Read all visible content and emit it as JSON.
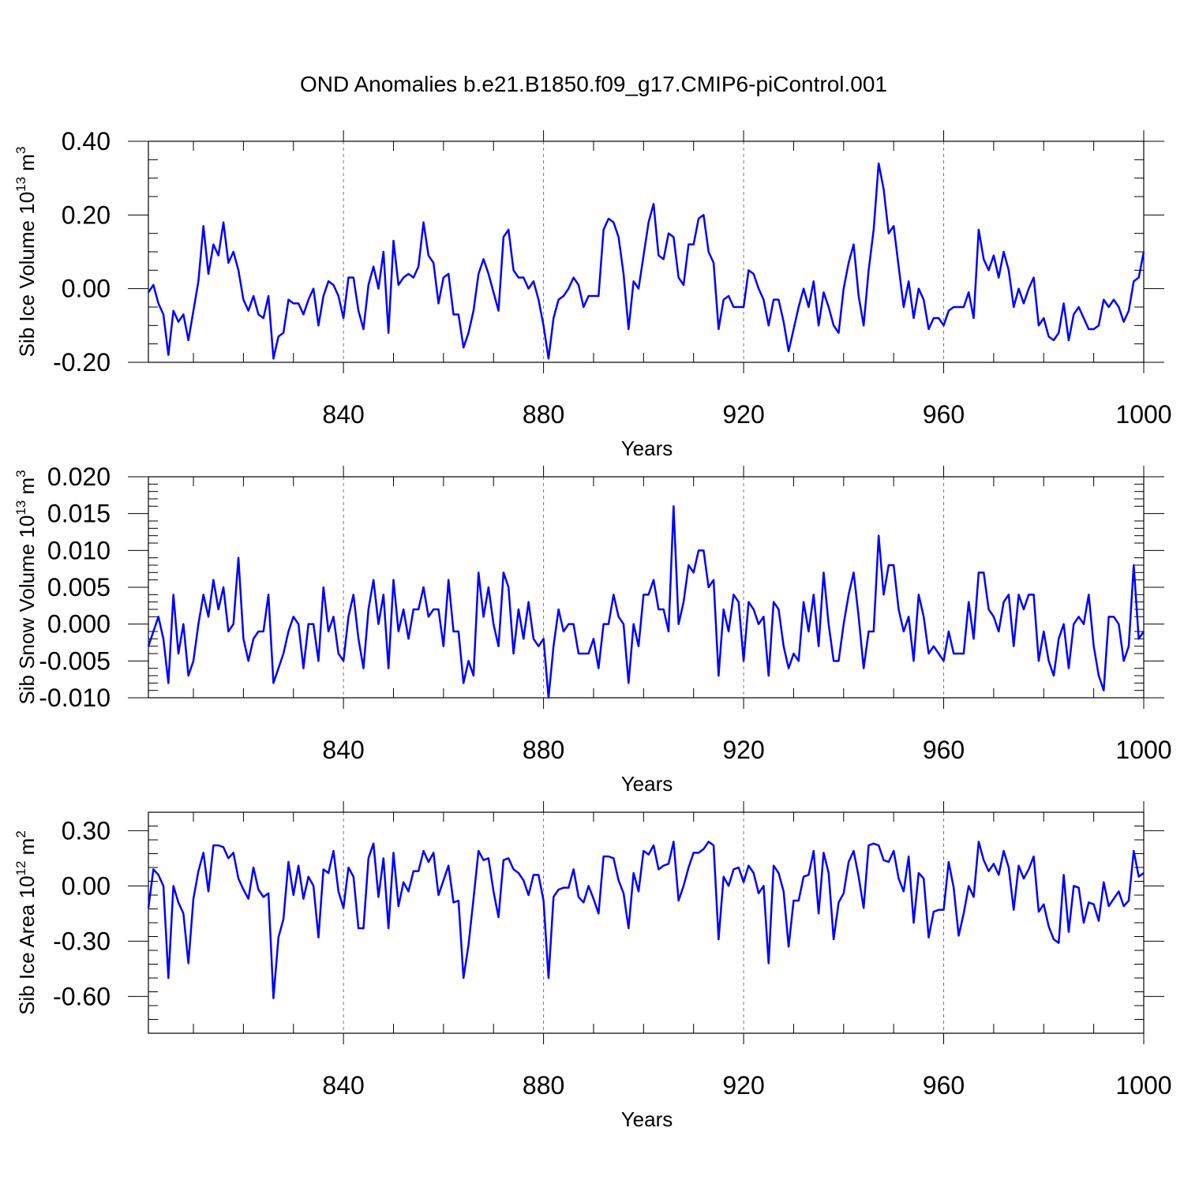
{
  "title": "OND Anomalies b.e21.B1850.f09_g17.CMIP6-piControl.001",
  "chart_data": [
    {
      "type": "line",
      "ylabel": {
        "text": "Sib Ice Volume 10",
        "exp": "13",
        "unit": " m",
        "unit_exp": "3"
      },
      "xlabel": "Years",
      "xlim": [
        801,
        1000
      ],
      "ylim": [
        -0.2,
        0.4
      ],
      "yticks": [
        "-0.20",
        "0.00",
        "0.20",
        "0.40"
      ],
      "ytick_values": [
        -0.2,
        0,
        0.2,
        0.4
      ],
      "y_minor_step": 0.05,
      "xticks": [
        "840",
        "880",
        "920",
        "960",
        "1000"
      ],
      "xtick_values": [
        840,
        880,
        920,
        960,
        1000
      ],
      "color": "#0000ff",
      "x_start": 801,
      "values": [
        -0.01,
        0.01,
        -0.04,
        -0.07,
        -0.18,
        -0.06,
        -0.09,
        -0.07,
        -0.14,
        -0.06,
        0.02,
        0.17,
        0.04,
        0.12,
        0.09,
        0.18,
        0.07,
        0.1,
        0.05,
        -0.03,
        -0.06,
        -0.02,
        -0.07,
        -0.08,
        -0.02,
        -0.19,
        -0.13,
        -0.12,
        -0.03,
        -0.04,
        -0.04,
        -0.07,
        -0.03,
        0.0,
        -0.1,
        -0.02,
        0.02,
        0.01,
        -0.02,
        -0.08,
        0.03,
        0.03,
        -0.06,
        -0.11,
        0.01,
        0.06,
        0.0,
        0.1,
        -0.12,
        0.13,
        0.01,
        0.03,
        0.04,
        0.03,
        0.06,
        0.18,
        0.09,
        0.07,
        -0.04,
        0.03,
        0.04,
        -0.07,
        -0.07,
        -0.16,
        -0.12,
        -0.06,
        0.04,
        0.08,
        0.04,
        -0.01,
        -0.06,
        0.14,
        0.16,
        0.05,
        0.03,
        0.03,
        0.0,
        0.02,
        -0.03,
        -0.1,
        -0.19,
        -0.08,
        -0.03,
        -0.02,
        0.0,
        0.03,
        0.01,
        -0.05,
        -0.02,
        -0.02,
        -0.02,
        0.16,
        0.19,
        0.18,
        0.14,
        0.04,
        -0.11,
        0.02,
        0.0,
        0.09,
        0.18,
        0.23,
        0.09,
        0.08,
        0.15,
        0.14,
        0.03,
        0.01,
        0.12,
        0.12,
        0.19,
        0.2,
        0.1,
        0.07,
        -0.11,
        -0.03,
        -0.02,
        -0.05,
        -0.05,
        -0.05,
        0.05,
        0.04,
        0.0,
        -0.03,
        -0.1,
        -0.03,
        -0.03,
        -0.09,
        -0.17,
        -0.11,
        -0.05,
        0.0,
        -0.05,
        0.02,
        -0.1,
        -0.01,
        -0.05,
        -0.1,
        -0.12,
        0.0,
        0.07,
        0.12,
        -0.02,
        -0.1,
        0.05,
        0.16,
        0.34,
        0.27,
        0.15,
        0.17,
        0.06,
        -0.05,
        0.02,
        -0.08,
        0.0,
        -0.03,
        -0.11,
        -0.08,
        -0.08,
        -0.1,
        -0.06,
        -0.05,
        -0.05,
        -0.05,
        -0.01,
        -0.08,
        0.16,
        0.08,
        0.05,
        0.09,
        0.03,
        0.1,
        0.05,
        -0.05,
        0.0,
        -0.04,
        0.0,
        0.03,
        -0.1,
        -0.08,
        -0.13,
        -0.14,
        -0.12,
        -0.04,
        -0.14,
        -0.07,
        -0.05,
        -0.08,
        -0.11,
        -0.11,
        -0.1,
        -0.03,
        -0.05,
        -0.03,
        -0.05,
        -0.09,
        -0.06,
        0.02,
        0.03,
        0.1
      ]
    },
    {
      "type": "line",
      "ylabel": {
        "text": "Sib Snow Volume 10",
        "exp": "13",
        "unit": " m",
        "unit_exp": "3"
      },
      "xlabel": "Years",
      "xlim": [
        801,
        1000
      ],
      "ylim": [
        -0.01,
        0.02
      ],
      "yticks": [
        "-0.010",
        "-0.005",
        "0.000",
        "0.005",
        "0.010",
        "0.015",
        "0.020"
      ],
      "ytick_values": [
        -0.01,
        -0.005,
        0,
        0.005,
        0.01,
        0.015,
        0.02
      ],
      "y_minor_step": 0.001,
      "xticks": [
        "840",
        "880",
        "920",
        "960",
        "1000"
      ],
      "xtick_values": [
        840,
        880,
        920,
        960,
        1000
      ],
      "color": "#0000ff",
      "x_start": 801,
      "values": [
        -0.003,
        -0.001,
        0.001,
        -0.002,
        -0.008,
        0.004,
        -0.004,
        0.0,
        -0.007,
        -0.005,
        0.0,
        0.004,
        0.001,
        0.006,
        0.002,
        0.005,
        -0.001,
        0.0,
        0.009,
        -0.002,
        -0.005,
        -0.002,
        -0.001,
        -0.001,
        0.004,
        -0.008,
        -0.006,
        -0.004,
        -0.001,
        0.001,
        0.0,
        -0.006,
        0.0,
        0.0,
        -0.005,
        0.005,
        -0.001,
        0.001,
        -0.004,
        -0.005,
        0.001,
        0.004,
        -0.002,
        -0.006,
        0.002,
        0.006,
        0.0,
        0.004,
        -0.006,
        0.006,
        -0.001,
        0.002,
        -0.002,
        0.002,
        0.002,
        0.005,
        0.001,
        0.002,
        0.002,
        -0.003,
        0.006,
        -0.001,
        -0.001,
        -0.008,
        -0.005,
        -0.007,
        0.007,
        0.001,
        0.005,
        0.0,
        -0.003,
        0.007,
        0.005,
        -0.004,
        0.002,
        -0.002,
        0.003,
        -0.002,
        -0.003,
        -0.002,
        -0.01,
        -0.003,
        0.002,
        -0.001,
        0.0,
        0.0,
        -0.004,
        -0.004,
        -0.004,
        -0.002,
        -0.006,
        0.0,
        0.0,
        0.004,
        0.001,
        0.0,
        -0.008,
        0.0,
        -0.003,
        0.004,
        0.004,
        0.006,
        0.002,
        0.002,
        -0.001,
        0.016,
        0.0,
        0.003,
        0.008,
        0.007,
        0.01,
        0.01,
        0.005,
        0.006,
        -0.007,
        0.002,
        -0.001,
        0.004,
        0.003,
        -0.005,
        0.003,
        0.002,
        0.0,
        0.001,
        -0.007,
        0.003,
        0.002,
        -0.003,
        -0.006,
        -0.004,
        -0.005,
        0.003,
        -0.001,
        0.004,
        -0.003,
        0.007,
        0.0,
        -0.005,
        -0.005,
        0.0,
        0.004,
        0.007,
        0.001,
        -0.006,
        -0.001,
        -0.001,
        0.012,
        0.004,
        0.008,
        0.008,
        0.002,
        -0.001,
        0.001,
        -0.005,
        0.004,
        0.001,
        -0.004,
        -0.003,
        -0.004,
        -0.005,
        -0.001,
        -0.004,
        -0.004,
        -0.004,
        0.003,
        -0.002,
        0.007,
        0.007,
        0.002,
        0.001,
        -0.001,
        0.003,
        0.004,
        -0.003,
        0.004,
        0.002,
        0.004,
        0.004,
        -0.005,
        -0.001,
        -0.005,
        -0.007,
        -0.002,
        0.0,
        -0.006,
        0.0,
        0.001,
        0.0,
        0.004,
        -0.003,
        -0.007,
        -0.009,
        0.001,
        0.001,
        0.0,
        -0.005,
        -0.003,
        0.008,
        -0.002,
        -0.001
      ]
    },
    {
      "type": "line",
      "ylabel": {
        "text": "Sib Ice Area 10",
        "exp": "12",
        "unit": " m",
        "unit_exp": "2"
      },
      "xlabel": "Years",
      "xlim": [
        801,
        1000
      ],
      "ylim": [
        -0.8,
        0.4
      ],
      "yticks": [
        "-0.60",
        "-0.30",
        "0.00",
        "0.30"
      ],
      "ytick_values": [
        -0.6,
        -0.3,
        0,
        0.3
      ],
      "y_minor_step": 0.075,
      "xticks": [
        "840",
        "880",
        "920",
        "960",
        "1000"
      ],
      "xtick_values": [
        840,
        880,
        920,
        960,
        1000
      ],
      "color": "#0000ff",
      "x_start": 801,
      "values": [
        -0.12,
        0.09,
        0.06,
        0.0,
        -0.5,
        0.0,
        -0.09,
        -0.15,
        -0.42,
        -0.07,
        0.08,
        0.18,
        -0.03,
        0.22,
        0.22,
        0.21,
        0.15,
        0.18,
        0.04,
        -0.02,
        -0.07,
        0.1,
        -0.02,
        -0.06,
        -0.04,
        -0.61,
        -0.28,
        -0.18,
        0.13,
        -0.05,
        0.11,
        -0.07,
        0.05,
        0.0,
        -0.28,
        0.09,
        0.07,
        0.19,
        -0.03,
        -0.12,
        0.1,
        0.05,
        -0.23,
        -0.23,
        0.15,
        0.23,
        -0.06,
        0.15,
        -0.23,
        0.18,
        -0.11,
        0.02,
        -0.03,
        0.08,
        0.08,
        0.19,
        0.13,
        0.18,
        -0.05,
        0.03,
        0.11,
        -0.09,
        -0.08,
        -0.5,
        -0.32,
        -0.07,
        0.19,
        0.14,
        0.15,
        -0.03,
        -0.17,
        0.14,
        0.15,
        0.09,
        0.07,
        0.03,
        -0.05,
        0.06,
        0.06,
        -0.08,
        -0.5,
        -0.06,
        -0.02,
        -0.01,
        -0.01,
        0.09,
        -0.06,
        -0.09,
        0.0,
        -0.07,
        -0.15,
        0.16,
        0.16,
        0.15,
        0.03,
        -0.04,
        -0.23,
        0.07,
        -0.03,
        0.19,
        0.17,
        0.22,
        0.09,
        0.11,
        0.12,
        0.24,
        -0.08,
        0.0,
        0.1,
        0.18,
        0.18,
        0.2,
        0.24,
        0.22,
        -0.29,
        0.05,
        0.0,
        0.09,
        0.1,
        0.02,
        0.11,
        0.07,
        -0.04,
        0.0,
        -0.42,
        0.11,
        0.07,
        -0.03,
        -0.33,
        -0.08,
        -0.08,
        0.05,
        0.06,
        0.19,
        -0.15,
        0.18,
        0.07,
        -0.29,
        -0.09,
        -0.04,
        0.13,
        0.19,
        0.05,
        -0.12,
        0.22,
        0.23,
        0.22,
        0.14,
        0.13,
        0.19,
        0.04,
        -0.03,
        0.16,
        -0.2,
        0.07,
        0.04,
        -0.28,
        -0.14,
        -0.13,
        -0.13,
        0.13,
        -0.01,
        -0.27,
        -0.15,
        0.0,
        -0.06,
        0.24,
        0.14,
        0.08,
        0.12,
        0.06,
        0.19,
        0.1,
        -0.13,
        0.11,
        0.04,
        0.09,
        0.16,
        -0.14,
        -0.1,
        -0.22,
        -0.29,
        -0.31,
        0.06,
        -0.25,
        0.0,
        -0.01,
        -0.2,
        -0.09,
        -0.1,
        -0.19,
        0.02,
        -0.11,
        -0.07,
        -0.03,
        -0.11,
        -0.08,
        0.19,
        0.05,
        0.07
      ]
    }
  ]
}
